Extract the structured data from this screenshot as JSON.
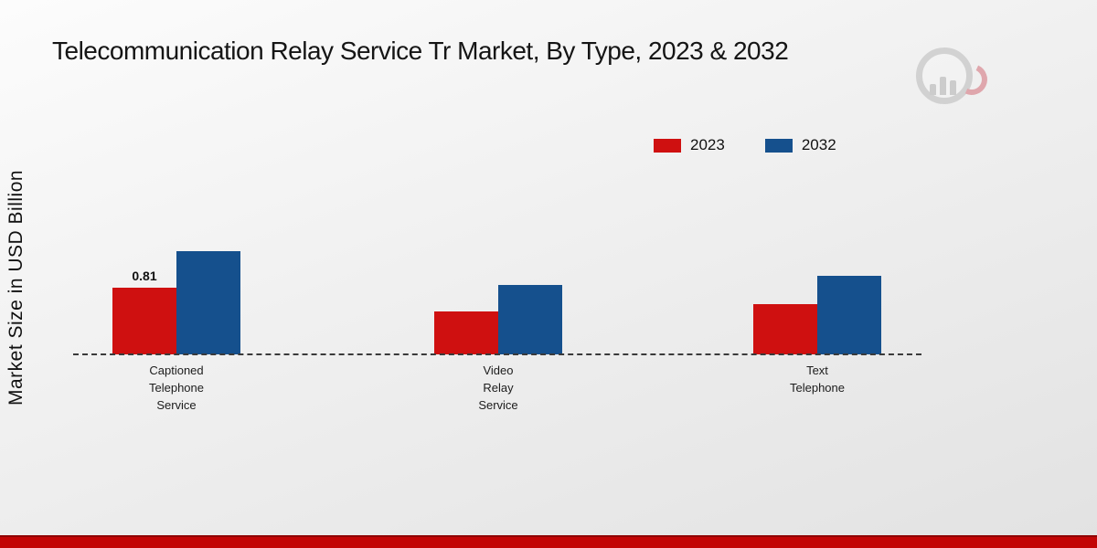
{
  "page": {
    "title": "Telecommunication Relay Service Tr Market, By Type, 2023 & 2032",
    "y_axis_label": "Market Size in USD Billion"
  },
  "legend": {
    "items": [
      {
        "label": "2023",
        "color": "#cf1010"
      },
      {
        "label": "2032",
        "color": "#15508d"
      }
    ]
  },
  "chart_data": {
    "type": "bar",
    "title": "Telecommunication Relay Service Tr Market, By Type, 2023 & 2032",
    "ylabel": "Market Size in USD Billion",
    "categories": [
      "Captioned Telephone Service",
      "Video Relay Service",
      "Text Telephone"
    ],
    "category_label_lines": [
      "Captioned\nTelephone\nService",
      "Video\nRelay\nService",
      "Text\nTelephone"
    ],
    "series": [
      {
        "name": "2023",
        "color": "#cf1010",
        "values": [
          0.81,
          0.52,
          0.61
        ],
        "data_labels": [
          "0.81",
          "",
          ""
        ]
      },
      {
        "name": "2032",
        "color": "#15508d",
        "values": [
          1.25,
          0.84,
          0.95
        ],
        "data_labels": [
          "",
          "",
          ""
        ]
      }
    ],
    "ylim": [
      0,
      2
    ],
    "grid": false,
    "baseline_style": "dashed",
    "legend_position": "top-right"
  },
  "footer": {
    "band_color": "#c20505"
  }
}
